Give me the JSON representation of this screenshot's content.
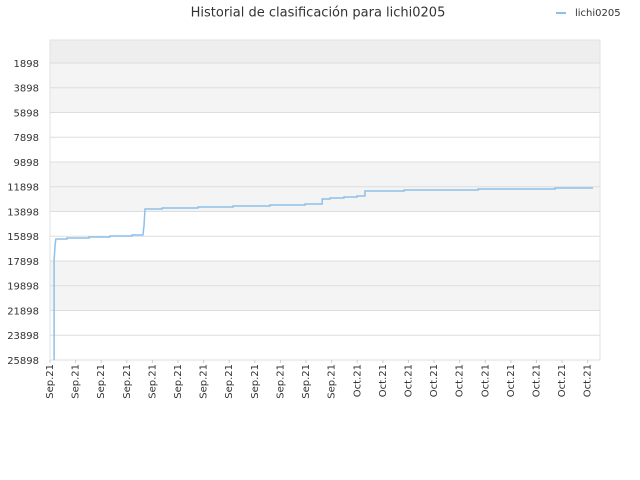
{
  "chart_data": {
    "type": "line",
    "title": "Historial de clasificación para lichi0205",
    "legend": "top-right",
    "inverted_y": true,
    "grid": true,
    "ylim": [
      25898,
      40
    ],
    "yticks": [
      1898,
      3898,
      5898,
      7898,
      9898,
      11898,
      13898,
      15898,
      17898,
      19898,
      21898,
      23898,
      25898
    ],
    "xlim": [
      0,
      21.48
    ],
    "xticks": [
      {
        "value": 0,
        "label": "Sep.21"
      },
      {
        "value": 1,
        "label": "Sep.21"
      },
      {
        "value": 2,
        "label": "Sep.21"
      },
      {
        "value": 3,
        "label": "Sep.21"
      },
      {
        "value": 4,
        "label": "Sep.21"
      },
      {
        "value": 5,
        "label": "Sep.21"
      },
      {
        "value": 6,
        "label": "Sep.21"
      },
      {
        "value": 7,
        "label": "Sep.21"
      },
      {
        "value": 8,
        "label": "Sep.21"
      },
      {
        "value": 9,
        "label": "Sep.21"
      },
      {
        "value": 10,
        "label": "Sep.21"
      },
      {
        "value": 11,
        "label": "Sep.21"
      },
      {
        "value": 12,
        "label": "Oct.21"
      },
      {
        "value": 13,
        "label": "Oct.21"
      },
      {
        "value": 14,
        "label": "Oct.21"
      },
      {
        "value": 15,
        "label": "Oct.21"
      },
      {
        "value": 16,
        "label": "Oct.21"
      },
      {
        "value": 17,
        "label": "Oct.21"
      },
      {
        "value": 18,
        "label": "Oct.21"
      },
      {
        "value": 19,
        "label": "Oct.21"
      },
      {
        "value": 20,
        "label": "Oct.21"
      },
      {
        "value": 21,
        "label": "Oct.21"
      }
    ],
    "x": [
      0.16,
      0.16,
      0.2,
      0.23,
      0.66,
      0.66,
      1.52,
      1.52,
      2.34,
      2.34,
      3.2,
      3.2,
      3.63,
      3.67,
      3.71,
      4.38,
      4.38,
      5.78,
      5.78,
      7.15,
      7.15,
      8.59,
      8.59,
      9.96,
      9.96,
      10.63,
      10.63,
      10.94,
      10.94,
      11.48,
      11.48,
      11.99,
      11.99,
      12.3,
      12.3,
      13.83,
      13.83,
      16.72,
      16.72,
      19.73,
      19.73,
      21.21
    ],
    "series": [
      {
        "name": "lichi0205",
        "color": "#8fc0ea",
        "values": [
          25898,
          17817,
          16600,
          16120,
          16120,
          16039,
          16039,
          15958,
          15958,
          15878,
          15878,
          15797,
          15797,
          15070,
          13696,
          13696,
          13615,
          13615,
          13535,
          13535,
          13454,
          13454,
          13373,
          13373,
          13292,
          13292,
          12888,
          12888,
          12807,
          12807,
          12727,
          12727,
          12646,
          12646,
          12242,
          12242,
          12161,
          12161,
          12080,
          12080,
          12000,
          12000
        ]
      }
    ]
  }
}
